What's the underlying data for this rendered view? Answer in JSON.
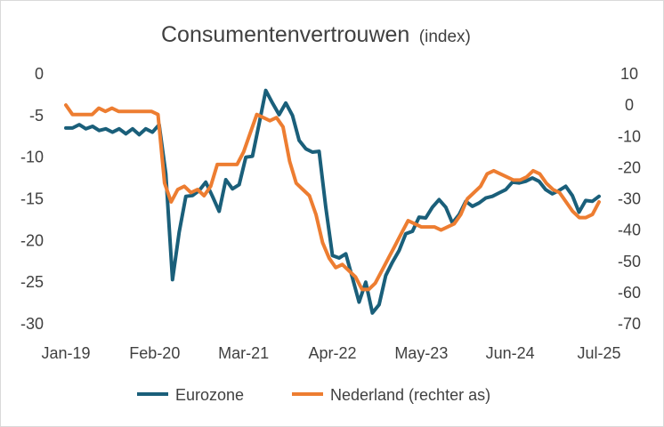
{
  "chart_data": {
    "type": "line",
    "title": "Consumentenvertrouwen",
    "title_suffix": "(index)",
    "x_tick_labels": [
      "Jan-19",
      "Feb-20",
      "Mar-21",
      "Apr-22",
      "May-23",
      "Jun-24",
      "Jul-25"
    ],
    "left_axis": {
      "ylim": [
        -30,
        0
      ],
      "ticks": [
        "0",
        "-5",
        "-10",
        "-15",
        "-20",
        "-25",
        "-30"
      ]
    },
    "right_axis": {
      "ylim": [
        -70,
        10
      ],
      "ticks": [
        "10",
        "0",
        "-10",
        "-20",
        "-30",
        "-40",
        "-50",
        "-60",
        "-70"
      ]
    },
    "grid": false,
    "legend_position": "bottom",
    "series": [
      {
        "name": "Eurozone",
        "axis": "left",
        "color": "#1a5f7a",
        "values": [
          -6.5,
          -6.5,
          -6.1,
          -6.6,
          -6.3,
          -6.8,
          -6.6,
          -7.0,
          -6.6,
          -7.2,
          -6.6,
          -7.3,
          -6.6,
          -7.0,
          -6.1,
          -12.0,
          -24.7,
          -19.0,
          -14.7,
          -14.6,
          -14.0,
          -13.0,
          -14.7,
          -16.5,
          -12.7,
          -13.8,
          -13.3,
          -10.0,
          -9.9,
          -6.0,
          -2.0,
          -3.5,
          -4.9,
          -3.5,
          -5.0,
          -8.0,
          -9.0,
          -9.4,
          -9.3,
          -16.0,
          -21.8,
          -22.1,
          -21.6,
          -24.5,
          -27.4,
          -25.0,
          -28.7,
          -27.7,
          -24.2,
          -22.6,
          -21.2,
          -19.2,
          -18.9,
          -17.2,
          -17.3,
          -16.0,
          -15.1,
          -16.0,
          -17.9,
          -16.9,
          -15.3,
          -15.9,
          -15.5,
          -14.9,
          -14.7,
          -14.3,
          -13.9,
          -13.0,
          -13.1,
          -12.9,
          -12.5,
          -12.9,
          -13.9,
          -14.4,
          -14.0,
          -13.5,
          -14.6,
          -16.6,
          -15.2,
          -15.3,
          -14.7
        ]
      },
      {
        "name": "Nederland (rechter as)",
        "axis": "right",
        "color": "#ed7d31",
        "values": [
          0,
          -3,
          -3,
          -3,
          -3,
          -1,
          -2,
          -1,
          -2,
          -2,
          -2,
          -2,
          -2,
          -2,
          -3,
          -25,
          -31,
          -27,
          -26,
          -28,
          -27,
          -29,
          -26,
          -19,
          -19,
          -19,
          -19,
          -15,
          -9,
          -3,
          -4,
          -5,
          -4,
          -7,
          -18,
          -25,
          -27,
          -29,
          -35,
          -44,
          -49,
          -52,
          -51,
          -53,
          -55,
          -59,
          -59,
          -57,
          -53,
          -49,
          -45,
          -41,
          -37,
          -38,
          -39,
          -39,
          -39,
          -40,
          -39,
          -38,
          -35,
          -30,
          -28,
          -26,
          -22,
          -21,
          -22,
          -23,
          -24,
          -24,
          -23,
          -21,
          -22,
          -25,
          -27,
          -28,
          -31,
          -34,
          -36,
          -36,
          -35,
          -31
        ]
      }
    ]
  }
}
